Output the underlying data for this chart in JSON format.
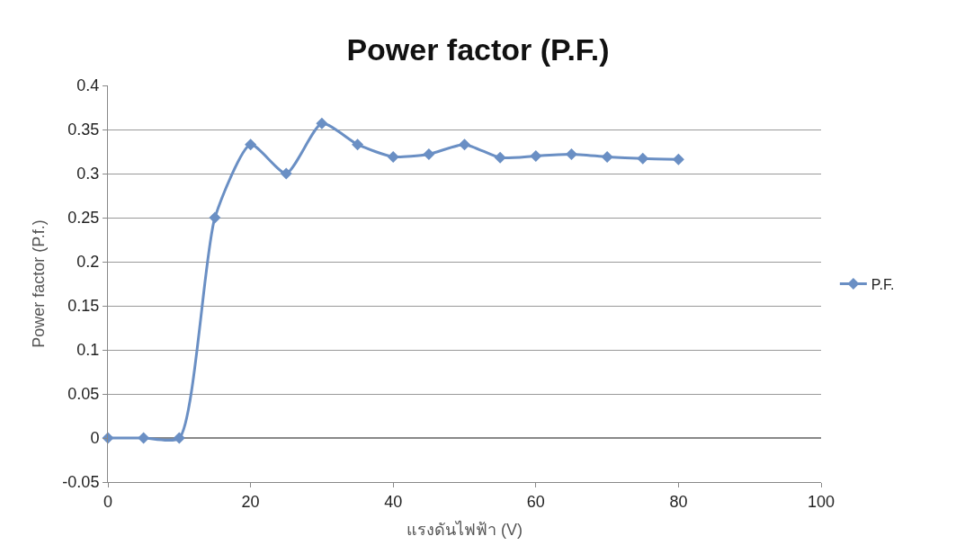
{
  "chart_data": {
    "type": "line",
    "title": "Power factor (P.F.)",
    "xlabel": "แรงดันไฟฟ้า (V)",
    "ylabel": "Power factor (P.f.)",
    "x": [
      0,
      5,
      10,
      15,
      20,
      25,
      30,
      35,
      40,
      45,
      50,
      55,
      60,
      65,
      70,
      75,
      80
    ],
    "series": [
      {
        "name": "P.F.",
        "color": "#6a8fc4",
        "values": [
          0,
          0,
          0,
          0.25,
          0.333,
          0.3,
          0.357,
          0.333,
          0.319,
          0.322,
          0.333,
          0.318,
          0.32,
          0.322,
          0.319,
          0.317,
          0.316
        ]
      }
    ],
    "xlim": [
      0,
      100
    ],
    "xticks": [
      0,
      20,
      40,
      60,
      80,
      100
    ],
    "ylim": [
      -0.05,
      0.4
    ],
    "yticks": [
      -0.05,
      0,
      0.05,
      0.1,
      0.15,
      0.2,
      0.25,
      0.3,
      0.35,
      0.4
    ],
    "grid": "y",
    "legend": "right",
    "marker": "diamond",
    "line_style": "solid"
  }
}
